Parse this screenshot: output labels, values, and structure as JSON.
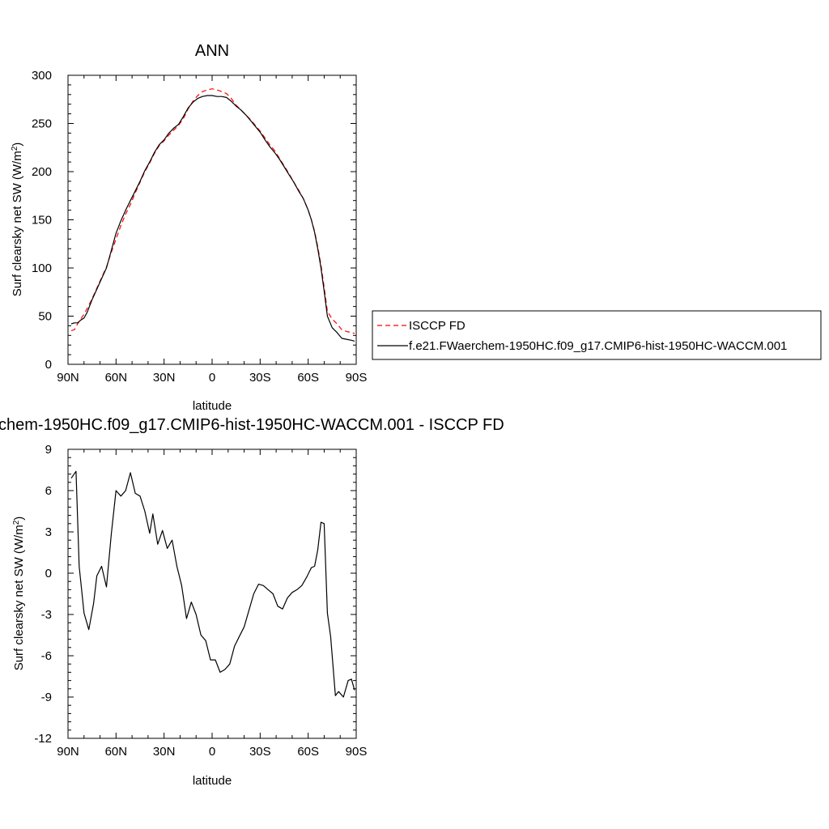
{
  "chart_data": [
    {
      "type": "line",
      "title": "ANN",
      "xlabel": "latitude",
      "ylabel": "Surf clearsky net SW (W/m",
      "ylabel_sup": "2",
      "ylabel_close": ")",
      "xlim": [
        90,
        -90
      ],
      "ylim": [
        0,
        300
      ],
      "xticks": [
        90,
        60,
        30,
        0,
        -30,
        -60,
        -90
      ],
      "xtick_labels": [
        "90N",
        "60N",
        "30N",
        "0",
        "30S",
        "60S",
        "90S"
      ],
      "yticks": [
        0,
        50,
        100,
        150,
        200,
        250,
        300
      ],
      "ytick_labels": [
        "0",
        "50",
        "100",
        "150",
        "200",
        "250",
        "300"
      ],
      "legend": "right",
      "grid": false,
      "series": [
        {
          "name": "ISCCP FD",
          "color": "#ff0000",
          "style": "dashed",
          "x": [
            88,
            86,
            84,
            82,
            80,
            78,
            75,
            72,
            69,
            66,
            63,
            60,
            57,
            54,
            51,
            48,
            45,
            42,
            39,
            36,
            33,
            30,
            27,
            24,
            21,
            18,
            15,
            12,
            9,
            6,
            3,
            0,
            -3,
            -6,
            -9,
            -12,
            -15,
            -18,
            -21,
            -24,
            -27,
            -30,
            -33,
            -36,
            -39,
            -42,
            -45,
            -48,
            -51,
            -54,
            -57,
            -60,
            -62,
            -64,
            -66,
            -68,
            -70,
            -72,
            -75,
            -78,
            -81,
            -84,
            -87,
            -89
          ],
          "y": [
            35,
            36,
            42,
            47,
            52,
            58,
            68,
            79,
            90,
            101,
            116,
            130,
            144,
            156,
            166,
            178,
            189,
            200,
            209,
            219,
            227,
            232,
            238,
            243,
            248,
            255,
            265,
            273,
            279,
            283,
            285,
            286,
            285,
            283,
            281,
            276,
            269,
            264,
            259,
            254,
            248,
            242,
            235,
            228,
            222,
            214,
            206,
            198,
            189,
            181,
            172,
            160,
            150,
            138,
            122,
            103,
            80,
            55,
            47,
            42,
            36,
            34,
            33,
            32
          ]
        },
        {
          "name": "f.e21.FWaerchem-1950HC.f09_g17.CMIP6-hist-1950HC-WACCM.001",
          "color": "#000000",
          "style": "solid",
          "x": [
            88,
            86,
            84,
            82,
            80,
            78,
            75,
            72,
            69,
            66,
            63,
            60,
            57,
            54,
            51,
            48,
            45,
            42,
            39,
            36,
            33,
            30,
            27,
            24,
            21,
            18,
            15,
            12,
            9,
            6,
            3,
            0,
            -3,
            -6,
            -9,
            -12,
            -15,
            -18,
            -21,
            -24,
            -27,
            -30,
            -33,
            -36,
            -39,
            -42,
            -45,
            -48,
            -51,
            -54,
            -57,
            -60,
            -62,
            -64,
            -66,
            -68,
            -70,
            -72,
            -75,
            -78,
            -81,
            -84,
            -87,
            -89
          ],
          "y": [
            42,
            43,
            43,
            46,
            48,
            54,
            67,
            78,
            89,
            100,
            118,
            136,
            149,
            160,
            170,
            180,
            190,
            201,
            210,
            220,
            228,
            233,
            240,
            245,
            249,
            257,
            266,
            272,
            276,
            278,
            279,
            279,
            278,
            278,
            277,
            273,
            268,
            264,
            259,
            253,
            247,
            241,
            233,
            226,
            220,
            213,
            205,
            197,
            189,
            180,
            172,
            160,
            150,
            137,
            120,
            100,
            76,
            50,
            38,
            33,
            27,
            26,
            25,
            24
          ]
        }
      ]
    },
    {
      "type": "line",
      "title": "chem-1950HC.f09_g17.CMIP6-hist-1950HC-WACCM.001 - ISCCP FD",
      "xlabel": "latitude",
      "ylabel": "Surf clearsky net SW (W/m",
      "ylabel_sup": "2",
      "ylabel_close": ")",
      "xlim": [
        90,
        -90
      ],
      "ylim": [
        -12,
        9
      ],
      "xticks": [
        90,
        60,
        30,
        0,
        -30,
        -60,
        -90
      ],
      "xtick_labels": [
        "90N",
        "60N",
        "30N",
        "0",
        "30S",
        "60S",
        "90S"
      ],
      "yticks": [
        -12,
        -9,
        -6,
        -3,
        0,
        3,
        6,
        9
      ],
      "ytick_labels": [
        "-12",
        "-9",
        "-6",
        "-3",
        "0",
        "3",
        "6",
        "9"
      ],
      "grid": false,
      "series": [
        {
          "color": "#000000",
          "style": "solid",
          "x": [
            88,
            85,
            83,
            80,
            77,
            74,
            72,
            69,
            66,
            63,
            60,
            57,
            54,
            51,
            48,
            45,
            42,
            39,
            37,
            34,
            31,
            28,
            25,
            22,
            19,
            16,
            13,
            10,
            7,
            4,
            1,
            -2,
            -5,
            -8,
            -11,
            -14,
            -17,
            -20,
            -23,
            -26,
            -29,
            -32,
            -35,
            -38,
            -41,
            -44,
            -47,
            -50,
            -53,
            -56,
            -59,
            -62,
            -64,
            -66,
            -68,
            -70,
            -72,
            -74,
            -77,
            -79,
            -82,
            -85,
            -87,
            -89
          ],
          "y": [
            6.9,
            7.4,
            0.5,
            -2.9,
            -4.1,
            -2.2,
            -0.2,
            0.5,
            -1.0,
            2.8,
            6.0,
            5.6,
            6.0,
            7.3,
            5.8,
            5.6,
            4.5,
            2.9,
            4.3,
            2.1,
            3.1,
            1.8,
            2.4,
            0.5,
            -0.9,
            -3.3,
            -2.1,
            -3.0,
            -4.5,
            -4.9,
            -6.3,
            -6.3,
            -7.2,
            -7.0,
            -6.6,
            -5.3,
            -4.6,
            -3.9,
            -2.7,
            -1.5,
            -0.8,
            -0.9,
            -1.2,
            -1.5,
            -2.4,
            -2.6,
            -1.8,
            -1.4,
            -1.2,
            -0.9,
            -0.3,
            0.4,
            0.5,
            1.7,
            3.7,
            3.6,
            -2.9,
            -4.6,
            -8.9,
            -8.6,
            -9.0,
            -7.8,
            -7.7,
            -8.5
          ]
        }
      ]
    }
  ]
}
